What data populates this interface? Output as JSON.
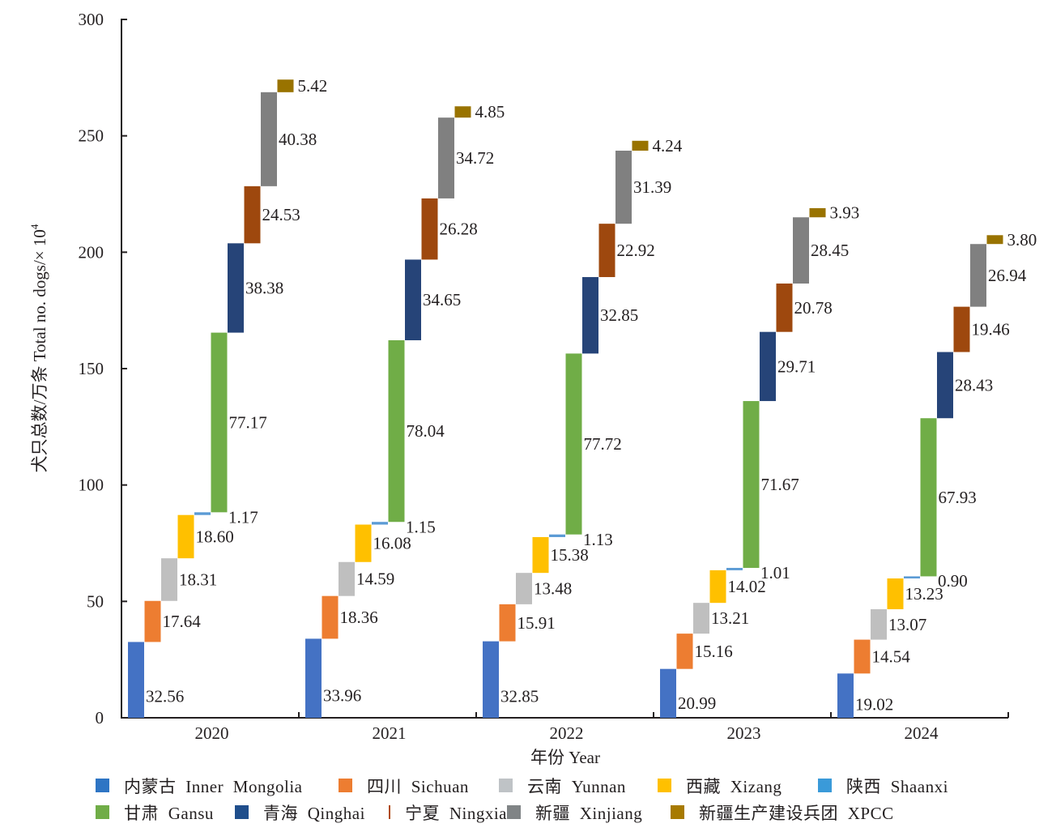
{
  "chart_data": {
    "type": "bar",
    "subtype": "waterfall",
    "title": "",
    "xlabel": "年份 Year",
    "ylabel": "犬只总数/万条 Total no. dogs/× 10",
    "ylabel_superscript": "4",
    "ylim": [
      0,
      300
    ],
    "yticks": [
      0,
      50,
      100,
      150,
      200,
      250,
      300
    ],
    "grid": false,
    "legend_position": "bottom",
    "categories": [
      "2020",
      "2021",
      "2022",
      "2023",
      "2024"
    ],
    "series": [
      {
        "name": "内蒙古 Inner Mongolia",
        "color": "#4472c4",
        "values": [
          32.56,
          33.96,
          32.85,
          20.99,
          19.02
        ]
      },
      {
        "name": "四川 Sichuan",
        "color": "#ed7d31",
        "values": [
          17.64,
          18.36,
          15.91,
          15.16,
          14.54
        ]
      },
      {
        "name": "云南 Yunnan",
        "color": "#bfbfbf",
        "values": [
          18.31,
          14.59,
          13.48,
          13.21,
          13.07
        ]
      },
      {
        "name": "西藏 Xizang",
        "color": "#ffc000",
        "values": [
          18.6,
          16.08,
          15.38,
          14.02,
          13.23
        ]
      },
      {
        "name": "陕西 Shaanxi",
        "color": "#5b9bd5",
        "values": [
          1.17,
          1.15,
          1.13,
          1.01,
          0.9
        ]
      },
      {
        "name": "甘肃 Gansu",
        "color": "#70ad47",
        "values": [
          77.17,
          78.04,
          77.72,
          71.67,
          67.93
        ]
      },
      {
        "name": "青海 Qinghai",
        "color": "#264478",
        "values": [
          38.38,
          34.65,
          32.85,
          29.71,
          28.43
        ]
      },
      {
        "name": "宁夏 Ningxia",
        "color": "#9e480e",
        "values": [
          24.53,
          26.28,
          22.92,
          20.78,
          19.46
        ]
      },
      {
        "name": "新疆 Xinjiang",
        "color": "#808080",
        "values": [
          40.38,
          34.72,
          31.39,
          28.45,
          26.94
        ]
      },
      {
        "name": "新疆生产建设兵团 XPCC",
        "color": "#997300",
        "values": [
          5.42,
          4.85,
          4.24,
          3.93,
          3.8
        ]
      }
    ]
  },
  "legend": {
    "rows": [
      [
        {
          "label": "内蒙古 Inner Mongolia",
          "color": "#2e75c4"
        },
        {
          "label": "四川 Sichuan",
          "color": "#ed7d31"
        },
        {
          "label": "云南 Yunnan",
          "color": "#bfc3c6"
        },
        {
          "label": "西藏 Xizang",
          "color": "#ffc000"
        },
        {
          "label": "陕西 Shaanxi",
          "color": "#3a9ad9"
        }
      ],
      [
        {
          "label": "甘肃 Gansu",
          "color": "#70ad47"
        },
        {
          "label": "青海 Qinghai",
          "color": "#1f4e8c"
        },
        {
          "label": "宁夏 Ningxia",
          "color": "#b04a10"
        },
        {
          "label": "新疆 Xinjiang",
          "color": "#808486"
        },
        {
          "label": "新疆生产建设兵团 XPCC",
          "color": "#a77a00"
        }
      ]
    ]
  }
}
